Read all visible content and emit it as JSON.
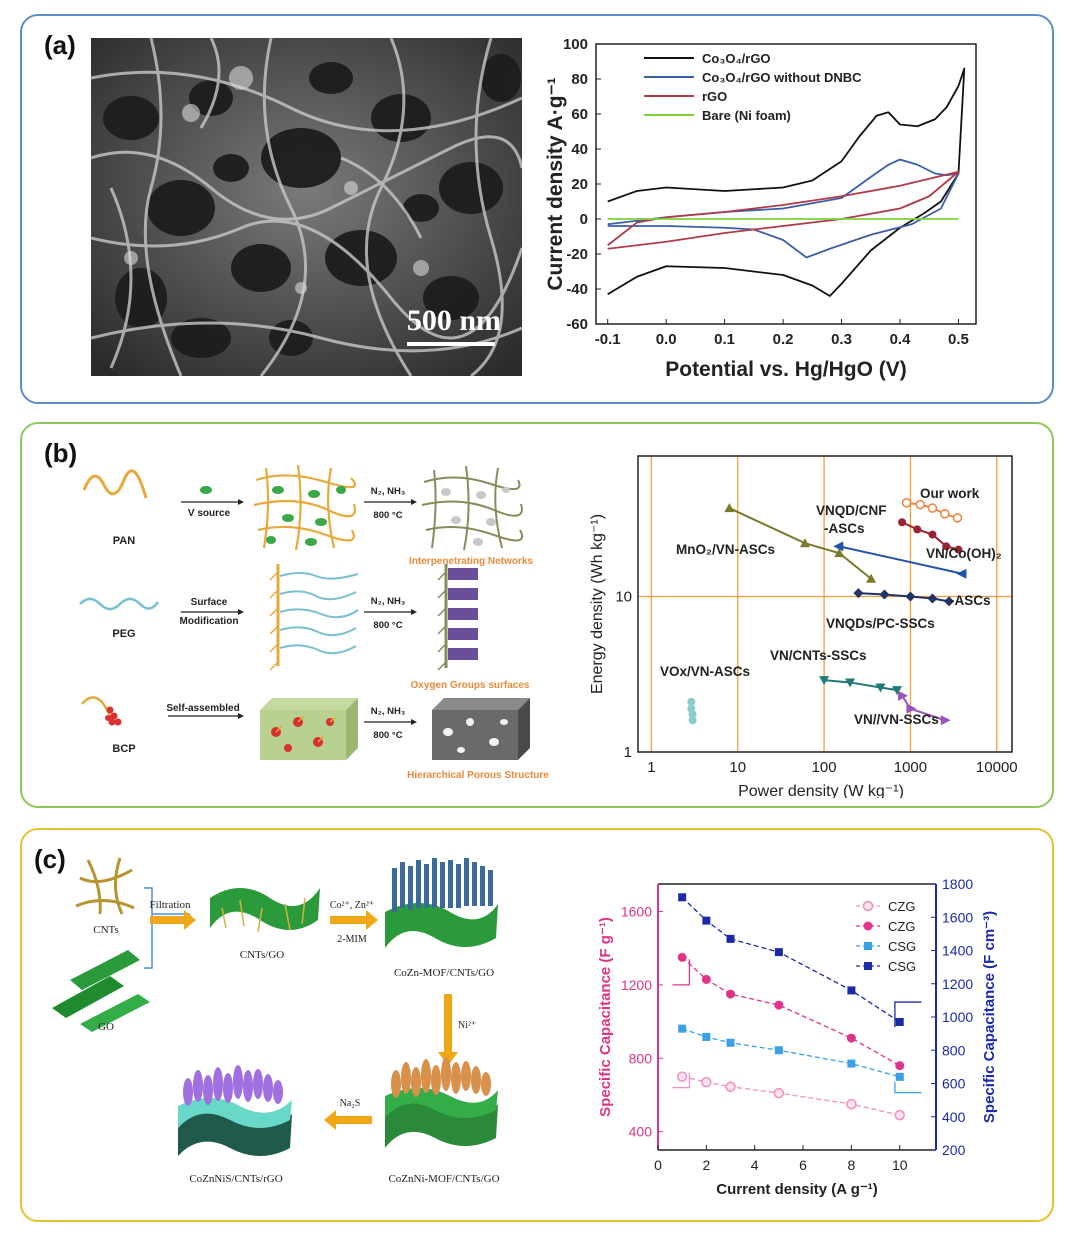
{
  "panels": {
    "a": {
      "label": "(a)",
      "sem_scale": "500 nm",
      "chart_data": {
        "type": "line",
        "xlabel": "Potential vs. Hg/HgO (V)",
        "ylabel": "Current density  A·g⁻¹",
        "xlim": [
          -0.12,
          0.53
        ],
        "ylim": [
          -60,
          100
        ],
        "xticks": [
          -0.1,
          0.0,
          0.1,
          0.2,
          0.3,
          0.4,
          0.5
        ],
        "xtick_labels": [
          "-0.1",
          "0.0",
          "0.1",
          "0.2",
          "0.3",
          "0.4",
          "0.5"
        ],
        "yticks": [
          -60,
          -40,
          -20,
          0,
          20,
          40,
          60,
          80,
          100
        ],
        "legend_position": "top-left",
        "series": [
          {
            "name": "Co₃O₄/rGO",
            "color": "#111111",
            "upper": [
              [
                -0.1,
                10
              ],
              [
                -0.05,
                16
              ],
              [
                0.0,
                18
              ],
              [
                0.05,
                17
              ],
              [
                0.1,
                16
              ],
              [
                0.15,
                17
              ],
              [
                0.2,
                18
              ],
              [
                0.25,
                22
              ],
              [
                0.3,
                33
              ],
              [
                0.33,
                47
              ],
              [
                0.36,
                59
              ],
              [
                0.38,
                61
              ],
              [
                0.4,
                54
              ],
              [
                0.43,
                53
              ],
              [
                0.46,
                57
              ],
              [
                0.48,
                64
              ],
              [
                0.5,
                76
              ],
              [
                0.51,
                86
              ]
            ],
            "lower": [
              [
                0.51,
                86
              ],
              [
                0.5,
                26
              ],
              [
                0.47,
                10
              ],
              [
                0.44,
                3
              ],
              [
                0.4,
                -5
              ],
              [
                0.35,
                -18
              ],
              [
                0.3,
                -37
              ],
              [
                0.28,
                -44
              ],
              [
                0.25,
                -38
              ],
              [
                0.2,
                -32
              ],
              [
                0.1,
                -28
              ],
              [
                0.0,
                -27
              ],
              [
                -0.05,
                -33
              ],
              [
                -0.1,
                -43
              ]
            ]
          },
          {
            "name": "Co₃O₄/rGO without DNBC",
            "color": "#3a5fa8",
            "upper": [
              [
                -0.1,
                -3
              ],
              [
                0.0,
                1
              ],
              [
                0.1,
                4
              ],
              [
                0.2,
                6
              ],
              [
                0.3,
                12
              ],
              [
                0.35,
                24
              ],
              [
                0.38,
                31
              ],
              [
                0.4,
                34
              ],
              [
                0.43,
                31
              ],
              [
                0.46,
                26
              ],
              [
                0.48,
                25
              ],
              [
                0.5,
                26
              ]
            ],
            "lower": [
              [
                0.5,
                26
              ],
              [
                0.47,
                6
              ],
              [
                0.42,
                -3
              ],
              [
                0.35,
                -9
              ],
              [
                0.28,
                -17
              ],
              [
                0.24,
                -22
              ],
              [
                0.2,
                -12
              ],
              [
                0.15,
                -6
              ],
              [
                0.1,
                -5
              ],
              [
                0.0,
                -4
              ],
              [
                -0.1,
                -4
              ]
            ]
          },
          {
            "name": "rGO",
            "color": "#b03a48",
            "upper": [
              [
                -0.1,
                -15
              ],
              [
                -0.05,
                -2
              ],
              [
                0.0,
                1
              ],
              [
                0.1,
                4
              ],
              [
                0.2,
                8
              ],
              [
                0.3,
                13
              ],
              [
                0.4,
                19
              ],
              [
                0.5,
                27
              ]
            ],
            "lower": [
              [
                0.5,
                27
              ],
              [
                0.45,
                13
              ],
              [
                0.4,
                6
              ],
              [
                0.3,
                0
              ],
              [
                0.2,
                -4
              ],
              [
                0.1,
                -8
              ],
              [
                0.0,
                -13
              ],
              [
                -0.1,
                -17
              ]
            ]
          },
          {
            "name": "Bare (Ni foam)",
            "color": "#7bd33a",
            "upper": [
              [
                -0.1,
                0
              ],
              [
                0.5,
                0
              ]
            ],
            "lower": []
          }
        ]
      }
    },
    "b": {
      "label": "(b)",
      "scheme": {
        "rows": [
          {
            "precursor": "PAN",
            "step_label": "V source",
            "condition": [
              "N₂, NH₃",
              "800 °C"
            ],
            "product": "Interpenetrating Networks"
          },
          {
            "precursor": "PEG",
            "step_label": [
              "Surface",
              "Modification"
            ],
            "condition": [
              "N₂, NH₃",
              "800 °C"
            ],
            "product": "Oxygen Groups surfaces"
          },
          {
            "precursor": "BCP",
            "step_label": "Self-assembled",
            "condition": [
              "N₂, NH₃",
              "800 °C"
            ],
            "product": "Hierarchical Porous Structure"
          }
        ]
      },
      "chart_data": {
        "type": "scatter",
        "xlabel": "Power density (W kg⁻¹)",
        "ylabel": "Energy density (Wh kg⁻¹)",
        "xscale": "log",
        "yscale": "log",
        "xlim": [
          0.7,
          15000
        ],
        "ylim": [
          1,
          80
        ],
        "xtick_labels": [
          "1",
          "10",
          "100",
          "1000",
          "10000"
        ],
        "ytick_labels": [
          "1",
          "10"
        ],
        "grid": true,
        "series": [
          {
            "name": "Our work",
            "color": "#ee8844",
            "marker": "circle-open",
            "points": [
              [
                900,
                40
              ],
              [
                1300,
                39
              ],
              [
                1800,
                37
              ],
              [
                2500,
                34
              ],
              [
                3500,
                32
              ]
            ]
          },
          {
            "name": "VNQD/CNF-ASCs",
            "color": "#992233",
            "marker": "circle",
            "points": [
              [
                800,
                30
              ],
              [
                1200,
                27
              ],
              [
                1800,
                25
              ],
              [
                2600,
                21
              ],
              [
                3600,
                20
              ]
            ]
          },
          {
            "name": "MnO₂/VN-ASCs",
            "color": "#7a7a2a",
            "marker": "triangle",
            "points": [
              [
                8,
                37
              ],
              [
                60,
                22
              ],
              [
                150,
                19
              ],
              [
                350,
                13
              ]
            ]
          },
          {
            "name": "VN/Co(OH)₂-ASCs",
            "color": "#2255aa",
            "marker": "triangle-left",
            "points": [
              [
                150,
                21
              ],
              [
                4000,
                14
              ]
            ]
          },
          {
            "name": "VNQDs/PC-SSCs",
            "color": "#223366",
            "marker": "diamond",
            "points": [
              [
                250,
                10.5
              ],
              [
                500,
                10.3
              ],
              [
                1000,
                10.0
              ],
              [
                1800,
                9.7
              ],
              [
                2800,
                9.3
              ]
            ]
          },
          {
            "name": "VN/CNTs-SSCs",
            "color": "#227777",
            "marker": "triangle-down",
            "points": [
              [
                100,
                2.9
              ],
              [
                200,
                2.8
              ],
              [
                450,
                2.6
              ],
              [
                700,
                2.5
              ]
            ]
          },
          {
            "name": "VN//VN-SSCs",
            "color": "#9955bb",
            "marker": "triangle-right",
            "points": [
              [
                800,
                2.3
              ],
              [
                1000,
                1.9
              ],
              [
                2500,
                1.6
              ]
            ]
          },
          {
            "name": "VOx/VN-ASCs",
            "color": "#88cccc",
            "marker": "circle",
            "points": [
              [
                2.9,
                2.1
              ],
              [
                2.9,
                1.9
              ],
              [
                3.0,
                1.75
              ],
              [
                3.0,
                1.6
              ]
            ]
          }
        ]
      }
    },
    "c": {
      "label": "(c)",
      "scheme": {
        "cnts": "CNTs",
        "go": "GO",
        "filtration": "Filtration",
        "cnts_go": "CNTs/GO",
        "co_zn": "Co²⁺, Zn²⁺",
        "mim": "2-MIM",
        "mof1": "CoZn-MOF/CNTs/GO",
        "ni": "Ni²⁺",
        "mof2": "CoZnNi-MOF/CNTs/GO",
        "na2s": "Na₂S",
        "final": "CoZnNiS/CNTs/rGO"
      },
      "chart_data": {
        "type": "line",
        "xlabel": "Current density (A g⁻¹)",
        "ylabel": "Specific Capacitance (F g⁻¹)",
        "ylabel_right": "Specific Capacitance (F cm⁻³)",
        "xlim": [
          0,
          11.5
        ],
        "ylim": [
          300,
          1750
        ],
        "ylim_right": [
          200,
          1800
        ],
        "xticks": [
          0,
          2,
          4,
          6,
          8,
          10
        ],
        "yticks": [
          400,
          800,
          1200,
          1600
        ],
        "yticks_right": [
          200,
          400,
          600,
          800,
          1000,
          1200,
          1400,
          1600,
          1800
        ],
        "legend_position": "top-right",
        "x": [
          1,
          2,
          3,
          5,
          8,
          10
        ],
        "series": [
          {
            "name": "CZG",
            "axis": "left",
            "color": "#f08fc0",
            "marker": "circle-open",
            "values": [
              700,
              670,
              645,
              610,
              550,
              490
            ]
          },
          {
            "name": "CZG",
            "axis": "left",
            "color": "#e0348a",
            "marker": "circle",
            "values": [
              1350,
              1230,
              1150,
              1090,
              910,
              760
            ]
          },
          {
            "name": "CSG",
            "axis": "right",
            "color": "#3aa0e8",
            "marker": "square",
            "values": [
              930,
              880,
              845,
              800,
              720,
              640
            ]
          },
          {
            "name": "CSG",
            "axis": "right",
            "color": "#1a2aaa",
            "marker": "square",
            "values": [
              1720,
              1580,
              1470,
              1390,
              1160,
              970
            ]
          }
        ]
      }
    }
  }
}
